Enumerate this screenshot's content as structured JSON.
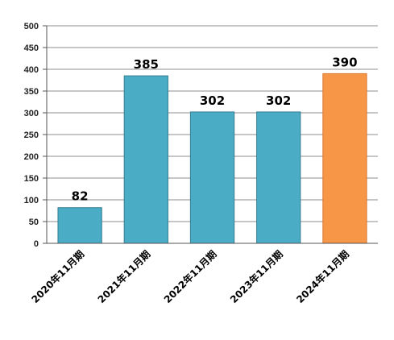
{
  "chart_data": {
    "type": "bar",
    "categories": [
      "2020年11月期",
      "2021年11月期",
      "2022年11月期",
      "2023年11月期",
      "2024年11月期"
    ],
    "values": [
      82,
      385,
      302,
      302,
      390
    ],
    "data_labels": [
      "82",
      "385",
      "302",
      "302",
      "390"
    ],
    "ylim": [
      0,
      500
    ],
    "yticks": [
      "0",
      "50",
      "100",
      "150",
      "200",
      "250",
      "300",
      "350",
      "400",
      "450",
      "500"
    ],
    "grid": true,
    "title": "",
    "xlabel": "",
    "ylabel": "",
    "colors": {
      "default_bar": "#4bacc6",
      "default_bar_border": "#357d91",
      "highlight_bar": "#f79646",
      "highlight_bar_border": "#d9782f",
      "highlight_index": 4,
      "gridline": "#8c8c8c",
      "axis": "#555555"
    }
  }
}
